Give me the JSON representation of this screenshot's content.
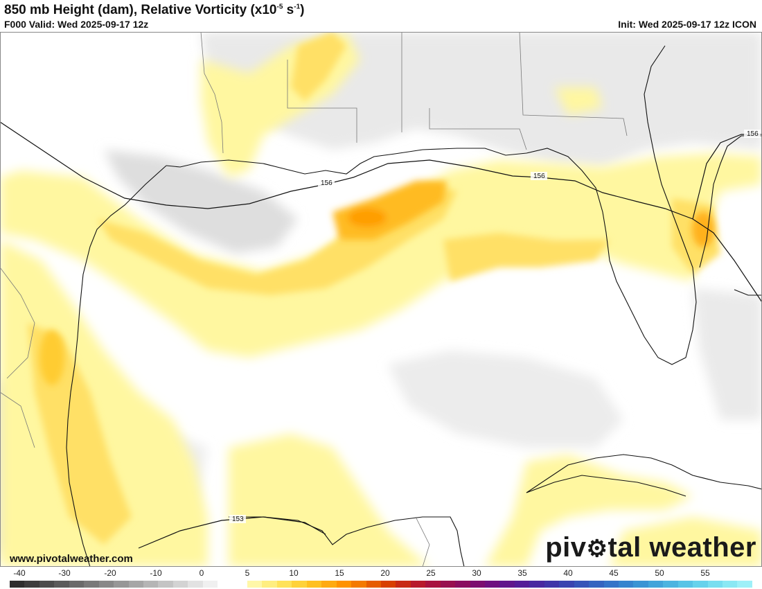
{
  "header": {
    "title_main": "850 mb Height (dam), Relative Vorticity (x10",
    "title_exp1": "-5",
    "title_mid": " s",
    "title_exp2": "-1",
    "title_end": ")",
    "valid": "F000 Valid: Wed 2025-09-17 12z",
    "init": "Init: Wed 2025-09-17 12z ICON"
  },
  "contour_labels": [
    "156",
    "156",
    "156",
    "153"
  ],
  "branding": {
    "website": "www.pivotalweather.com",
    "logo_left": "piv",
    "logo_right": "tal weather"
  },
  "colorbar": {
    "labels": [
      "-40",
      "-30",
      "-20",
      "-10",
      "0",
      "5",
      "10",
      "15",
      "20",
      "25",
      "30",
      "35",
      "40",
      "45",
      "50",
      "55"
    ],
    "colors": [
      "#2e2e2e",
      "#3d3d3d",
      "#4c4c4c",
      "#5b5b5b",
      "#6a6a6a",
      "#797979",
      "#888888",
      "#979797",
      "#a6a6a6",
      "#b5b5b5",
      "#c4c4c4",
      "#d3d3d3",
      "#e2e2e2",
      "#f0f0f0",
      "#ffffff",
      "#ffffff",
      "#fff7a8",
      "#ffee80",
      "#ffe25a",
      "#ffd23a",
      "#ffc020",
      "#ffaa10",
      "#ff9200",
      "#f47a00",
      "#e65c00",
      "#d84000",
      "#c82a14",
      "#b81a2c",
      "#a8123f",
      "#981050",
      "#8a0e60",
      "#7c0e70",
      "#6e1080",
      "#60168c",
      "#541c98",
      "#4828a0",
      "#4034a8",
      "#3a44b0",
      "#3654b8",
      "#3464c0",
      "#3474c8",
      "#3684ce",
      "#3a94d4",
      "#42a4da",
      "#4cb4e0",
      "#58c4e6",
      "#66d2ec",
      "#78def0",
      "#8ae8f4",
      "#9ef0f8"
    ]
  },
  "map": {
    "colors": {
      "land_gray": "#d9d9d9",
      "gray_light": "#ececec",
      "gray_mid": "#d6d6d6",
      "yellow_light": "#fff8a6",
      "yellow": "#ffdd55",
      "orange": "#ffb81f",
      "orange_dark": "#ff9a00",
      "coast": "#111111",
      "border": "#555555"
    }
  }
}
